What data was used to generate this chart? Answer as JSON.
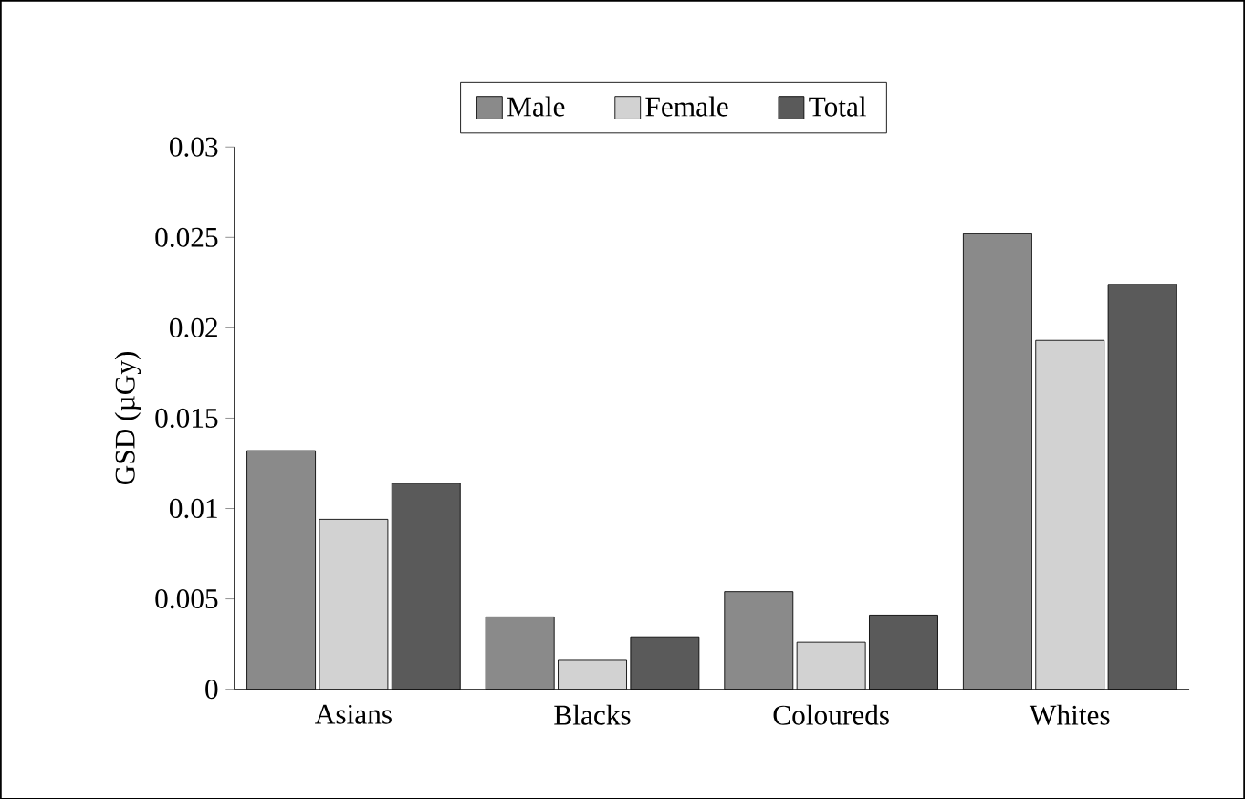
{
  "chart_data": {
    "type": "bar",
    "ylabel": "GSD (µGy)",
    "categories": [
      "Asians",
      "Blacks",
      "Coloureds",
      "Whites"
    ],
    "series": [
      {
        "name": "Male",
        "color": "#8a8a8a",
        "values": [
          0.0132,
          0.004,
          0.0054,
          0.0252
        ]
      },
      {
        "name": "Female",
        "color": "#d2d2d2",
        "values": [
          0.0094,
          0.0016,
          0.0026,
          0.0193
        ]
      },
      {
        "name": "Total",
        "color": "#5a5a5a",
        "values": [
          0.0114,
          0.0029,
          0.0041,
          0.0224
        ]
      }
    ],
    "ylim": [
      0,
      0.03
    ],
    "yticks": [
      0,
      0.005,
      0.01,
      0.015,
      0.02,
      0.025,
      0.03
    ],
    "grid": false,
    "legend": "top"
  }
}
